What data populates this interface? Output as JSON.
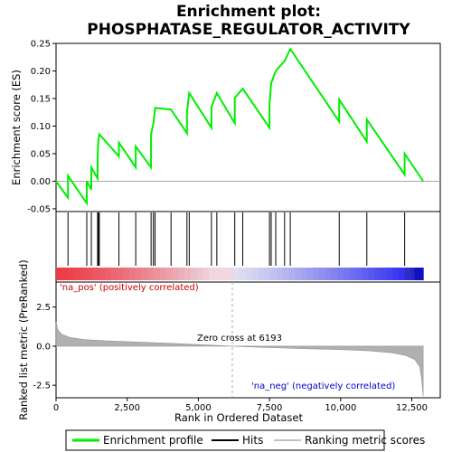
{
  "chart_data": {
    "type": "line",
    "title": [
      "Enrichment plot:",
      "PHOSPHATASE_REGULATOR_ACTIVITY"
    ],
    "xlabel": "Rank in Ordered Dataset",
    "x_ticks": [
      0,
      2500,
      5000,
      7500,
      10000,
      12500
    ],
    "x_tick_labels": [
      "0",
      "2,500",
      "5,000",
      "7,500",
      "10,000",
      "12,500"
    ],
    "xlim": [
      0,
      13500
    ],
    "n_genes": 12900,
    "es_panel": {
      "ylabel": "Enrichment score (ES)",
      "ylim": [
        -0.055,
        0.25
      ],
      "y_ticks": [
        -0.05,
        0.0,
        0.05,
        0.1,
        0.15,
        0.2,
        0.25
      ],
      "y_tick_labels": [
        "-0.05",
        "0.00",
        "0.05",
        "0.10",
        "0.15",
        "0.20",
        "0.25"
      ],
      "color": "#00ee00",
      "hits": [
        420,
        1080,
        1240,
        1460,
        1490,
        1520,
        2210,
        2800,
        3340,
        3420,
        3480,
        4040,
        4600,
        4680,
        5460,
        5650,
        6280,
        6560,
        7500,
        7560,
        7720,
        8030,
        8230,
        9950,
        10920,
        12250
      ],
      "peaks": [
        0.01,
        -0.0,
        0.025,
        0.045,
        0.075,
        0.085,
        0.07,
        0.063,
        0.085,
        0.105,
        0.133,
        0.13,
        0.125,
        0.16,
        0.135,
        0.16,
        0.151,
        0.168,
        0.14,
        0.178,
        0.2,
        0.218,
        0.24,
        0.148,
        0.112,
        0.05
      ]
    },
    "metric_panel": {
      "ylabel": "Ranked list metric (PreRanked)",
      "ylim": [
        -3.3,
        4.1
      ],
      "y_ticks": [
        -2.5,
        0.0,
        2.5
      ],
      "y_tick_labels": [
        "-2.5",
        "0.0",
        "2.5"
      ],
      "profile": [
        [
          0,
          1.55
        ],
        [
          60,
          1.05
        ],
        [
          200,
          0.75
        ],
        [
          500,
          0.55
        ],
        [
          1000,
          0.42
        ],
        [
          2000,
          0.32
        ],
        [
          3000,
          0.25
        ],
        [
          4000,
          0.18
        ],
        [
          5000,
          0.1
        ],
        [
          6193,
          0.0
        ],
        [
          7000,
          -0.06
        ],
        [
          8000,
          -0.12
        ],
        [
          9000,
          -0.17
        ],
        [
          10000,
          -0.22
        ],
        [
          11000,
          -0.3
        ],
        [
          11800,
          -0.42
        ],
        [
          12300,
          -0.6
        ],
        [
          12600,
          -0.85
        ],
        [
          12780,
          -1.3
        ],
        [
          12850,
          -2.1
        ],
        [
          12900,
          -3.2
        ]
      ],
      "zero_cross": 6193,
      "zero_cross_label": "Zero cross at 6193",
      "pos_label": "'na_pos' (positively correlated)",
      "neg_label": "'na_neg' (negatively correlated)",
      "pos_color": "#cc0000",
      "neg_color": "#0000cc"
    },
    "legend": [
      "Enrichment profile",
      "Hits",
      "Ranking metric scores"
    ],
    "legend_position": "bottom"
  }
}
